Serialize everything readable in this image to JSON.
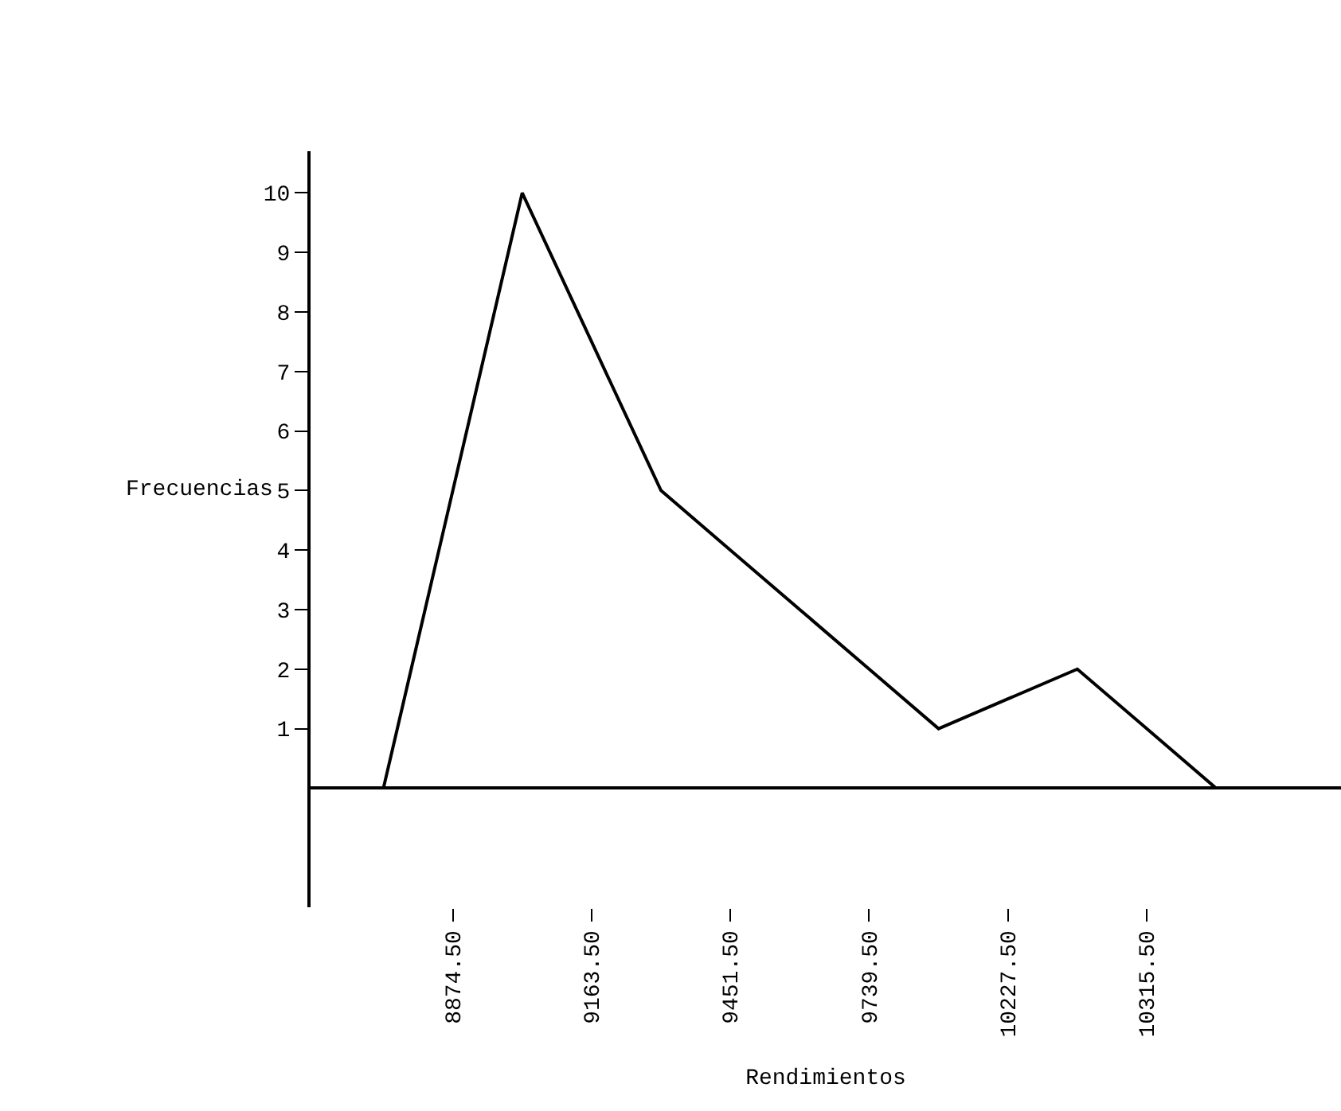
{
  "chart_data": {
    "type": "line",
    "xlabel": "Rendimientos",
    "ylabel": "Frecuencias",
    "categories": [
      null,
      "8874.50",
      null,
      "9163.50",
      null,
      "9451.50",
      null,
      "9739.50",
      null,
      "10227.50",
      null,
      "10315.50",
      null
    ],
    "values": [
      0,
      5,
      10,
      7.5,
      5,
      4,
      3,
      2,
      1,
      1.5,
      2,
      1,
      0
    ],
    "color": "#000000",
    "ylim": [
      -2,
      10.7
    ],
    "yticks": [
      1,
      2,
      3,
      4,
      5,
      6,
      7,
      8,
      9,
      10
    ],
    "grid": false,
    "legend": false,
    "marker": "none",
    "line_style": "solid"
  }
}
